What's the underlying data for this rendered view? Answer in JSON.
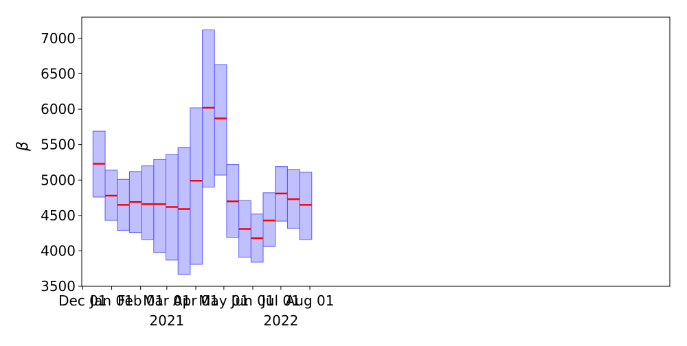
{
  "chart_data": {
    "type": "box-range",
    "ylabel": "β",
    "ylim": [
      3500,
      7300
    ],
    "yticks": [
      3500,
      4000,
      4500,
      5000,
      5500,
      6000,
      6500,
      7000
    ],
    "xlim": [
      "2020-11-30",
      "2022-08-21"
    ],
    "x_ticks": [
      {
        "date": "2020-12-01",
        "label": "Dec 01"
      },
      {
        "date": "2021-01-01",
        "label": "Jan 01"
      },
      {
        "date": "2021-02-01",
        "label": "Feb 01"
      },
      {
        "date": "2021-03-01",
        "label": "Mar 01"
      },
      {
        "date": "2021-04-01",
        "label": "Apr 01"
      },
      {
        "date": "2021-05-01",
        "label": "May 01"
      },
      {
        "date": "2021-06-01",
        "label": "Jun 01"
      },
      {
        "date": "2021-07-01",
        "label": "Jul 01"
      },
      {
        "date": "2021-08-01",
        "label": "Aug 01"
      }
    ],
    "year_labels": [
      {
        "label": "2021",
        "at": "2021-03-01"
      },
      {
        "label": "2022",
        "at": "2021-07-01"
      }
    ],
    "box_style": {
      "fill": "#8c8cff",
      "fill_opacity": 0.55,
      "edge": "#5a5aff",
      "median": "#ff0000"
    },
    "boxes": [
      {
        "start": "2020-12-12",
        "end": "2020-12-25",
        "low": 4760,
        "high": 5690,
        "median": 5230
      },
      {
        "start": "2020-12-25",
        "end": "2021-01-07",
        "low": 4430,
        "high": 5140,
        "median": 4780
      },
      {
        "start": "2021-01-07",
        "end": "2021-01-20",
        "low": 4290,
        "high": 5010,
        "median": 4650
      },
      {
        "start": "2021-01-20",
        "end": "2021-02-02",
        "low": 4260,
        "high": 5120,
        "median": 4690
      },
      {
        "start": "2021-02-02",
        "end": "2021-02-15",
        "low": 4160,
        "high": 5200,
        "median": 4660
      },
      {
        "start": "2021-02-15",
        "end": "2021-02-28",
        "low": 3980,
        "high": 5290,
        "median": 4660
      },
      {
        "start": "2021-02-28",
        "end": "2021-03-13",
        "low": 3870,
        "high": 5360,
        "median": 4620
      },
      {
        "start": "2021-03-13",
        "end": "2021-03-26",
        "low": 3670,
        "high": 5460,
        "median": 4590
      },
      {
        "start": "2021-03-26",
        "end": "2021-04-08",
        "low": 3810,
        "high": 6020,
        "median": 4990
      },
      {
        "start": "2021-04-08",
        "end": "2021-04-21",
        "low": 4900,
        "high": 7120,
        "median": 6020
      },
      {
        "start": "2021-04-21",
        "end": "2021-05-04",
        "low": 5070,
        "high": 6630,
        "median": 5870
      },
      {
        "start": "2021-05-04",
        "end": "2021-05-17",
        "low": 4190,
        "high": 5220,
        "median": 4700
      },
      {
        "start": "2021-05-17",
        "end": "2021-05-30",
        "low": 3910,
        "high": 4710,
        "median": 4310
      },
      {
        "start": "2021-05-30",
        "end": "2021-06-12",
        "low": 3840,
        "high": 4520,
        "median": 4180
      },
      {
        "start": "2021-06-12",
        "end": "2021-06-25",
        "low": 4060,
        "high": 4820,
        "median": 4430
      },
      {
        "start": "2021-06-25",
        "end": "2021-07-08",
        "low": 4420,
        "high": 5190,
        "median": 4810
      },
      {
        "start": "2021-07-08",
        "end": "2021-07-21",
        "low": 4320,
        "high": 5150,
        "median": 4730
      },
      {
        "start": "2021-07-21",
        "end": "2021-08-03",
        "low": 4160,
        "high": 5110,
        "median": 4650
      }
    ]
  }
}
